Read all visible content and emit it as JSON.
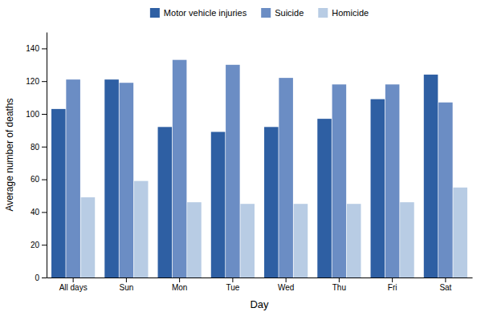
{
  "chart_data": {
    "type": "bar",
    "categories": [
      "All days",
      "Sun",
      "Mon",
      "Tue",
      "Wed",
      "Thu",
      "Fri",
      "Sat"
    ],
    "series": [
      {
        "name": "Motor vehicle injuries",
        "color": "#2e5fa3",
        "values": [
          103,
          121,
          92,
          89,
          92,
          97,
          109,
          124
        ]
      },
      {
        "name": "Suicide",
        "color": "#6b8dc4",
        "values": [
          121,
          119,
          133,
          130,
          122,
          118,
          118,
          107
        ]
      },
      {
        "name": "Homicide",
        "color": "#b8cce4",
        "values": [
          49,
          59,
          46,
          45,
          45,
          45,
          46,
          55
        ]
      }
    ],
    "xlabel": "Day",
    "ylabel": "Average number of deaths",
    "ylim": [
      0,
      150
    ],
    "yticks": [
      0,
      20,
      40,
      60,
      80,
      100,
      120,
      140
    ],
    "legend": "top",
    "grid": false
  }
}
